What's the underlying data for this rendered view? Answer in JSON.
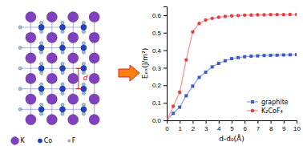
{
  "chart_data": {
    "type": "line",
    "xlabel": "d-d₀(Å)",
    "ylabel": "Eₑₓ(J/m²)",
    "x": [
      0,
      0.5,
      1,
      1.5,
      2,
      2.5,
      3,
      3.5,
      4,
      4.5,
      5,
      5.5,
      6,
      6.5,
      7,
      7.5,
      8,
      8.5,
      9,
      9.5,
      10
    ],
    "series": [
      {
        "name": "graphite",
        "color": "#3a5bcd",
        "marker": "square",
        "line_style": "solid",
        "values": [
          0.0,
          0.04,
          0.075,
          0.14,
          0.195,
          0.245,
          0.275,
          0.305,
          0.325,
          0.34,
          0.352,
          0.358,
          0.363,
          0.366,
          0.368,
          0.37,
          0.371,
          0.372,
          0.373,
          0.374,
          0.375
        ]
      },
      {
        "name": "K₂CoF₄",
        "color": "#e84040",
        "marker": "circle",
        "line_style": "solid",
        "values": [
          0.0,
          0.08,
          0.16,
          0.345,
          0.505,
          0.553,
          0.572,
          0.582,
          0.588,
          0.593,
          0.596,
          0.598,
          0.6,
          0.601,
          0.602,
          0.602,
          0.603,
          0.603,
          0.603,
          0.604,
          0.604
        ]
      }
    ],
    "xlim": [
      0,
      10
    ],
    "ylim": [
      0.0,
      0.65
    ],
    "xticks": [
      0,
      1,
      2,
      3,
      4,
      5,
      6,
      7,
      8,
      9,
      10
    ],
    "yticks": [
      {
        "value": 0.0,
        "label": "0.0"
      },
      0.1,
      0.2,
      0.3,
      0.4,
      0.5,
      0.6
    ],
    "legend": "lower right",
    "annotations": [
      {
        "text": "K",
        "color": "#8040c0"
      },
      {
        "text": "Co",
        "color": "#1a40cc"
      },
      {
        "text": "F",
        "color": "#a0c0e0"
      },
      {
        "text": "d",
        "color": "#ff0000"
      }
    ]
  }
}
